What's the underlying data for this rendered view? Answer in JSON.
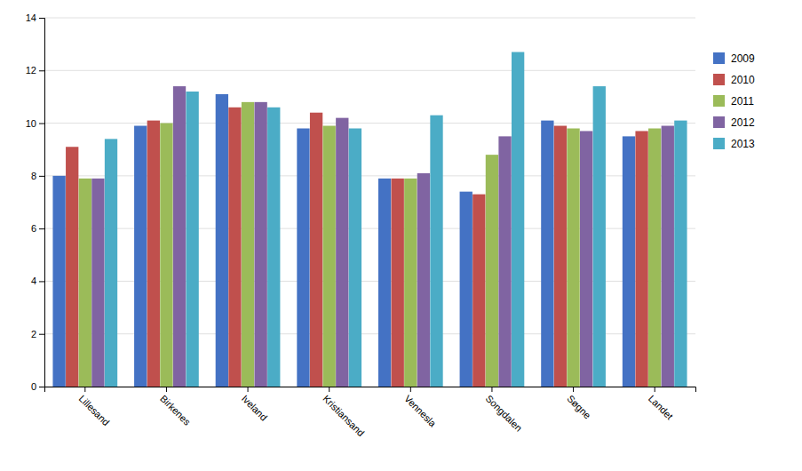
{
  "chart_data": {
    "type": "bar",
    "categories": [
      "Lillesand",
      "Birkenes",
      "Iveland",
      "Kristiansand",
      "Vennesla",
      "Songdalen",
      "Søgne",
      "Landet"
    ],
    "series": [
      {
        "name": "2009",
        "color": "#4472C4",
        "values": [
          8.0,
          9.9,
          11.1,
          9.8,
          7.9,
          7.4,
          10.1,
          9.5
        ]
      },
      {
        "name": "2010",
        "color": "#C0504D",
        "values": [
          9.1,
          10.1,
          10.6,
          10.4,
          7.9,
          7.3,
          9.9,
          9.7
        ]
      },
      {
        "name": "2011",
        "color": "#9BBB59",
        "values": [
          7.9,
          10.0,
          10.8,
          9.9,
          7.9,
          8.8,
          9.8,
          9.8
        ]
      },
      {
        "name": "2012",
        "color": "#8064A2",
        "values": [
          7.9,
          11.4,
          10.8,
          10.2,
          8.1,
          9.5,
          9.7,
          9.9
        ]
      },
      {
        "name": "2013",
        "color": "#4BACC6",
        "values": [
          9.4,
          11.2,
          10.6,
          9.8,
          10.3,
          12.7,
          11.4,
          10.1
        ]
      }
    ],
    "ylim": [
      0,
      14
    ],
    "yticks": [
      0,
      2,
      4,
      6,
      8,
      10,
      12,
      14
    ],
    "grid": true,
    "legend": "right"
  }
}
